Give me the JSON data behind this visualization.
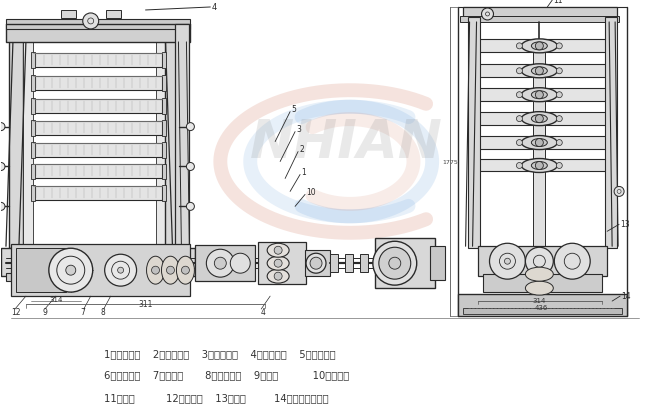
{
  "background_color": "#ffffff",
  "figure_width": 6.5,
  "figure_height": 4.06,
  "dpi": 100,
  "caption_lines": [
    "1．传动主轴    2．小斜齿轮    3．大斜齿轮    4．上偏心轮    5．下偏心轮",
    "6．小斜齿轮    7．凸轮轴       8．大斜齿轮    9．凸轮           10．跳动杆",
    "11．锤铁          12．用油器    13．螺塔         14．自动停车装置"
  ],
  "caption_color": "#333333",
  "caption_fontsize": 7.2,
  "watermark_color_red": "#d4826a",
  "watermark_color_blue": "#7aace0",
  "lc": "#2a2a2a",
  "bg": "#f0eeea"
}
